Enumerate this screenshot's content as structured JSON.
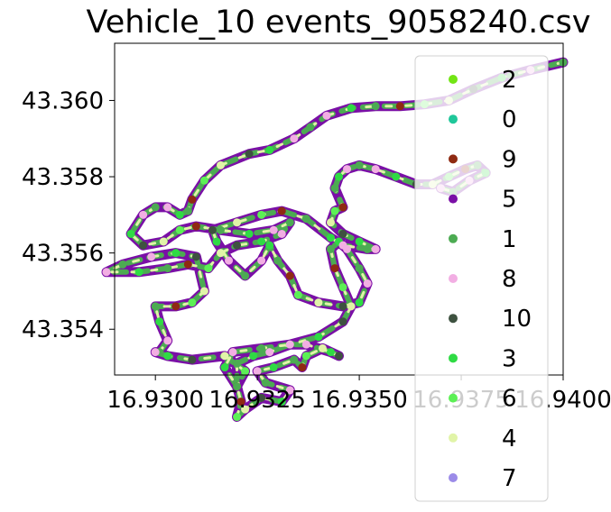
{
  "chart_data": {
    "type": "scatter",
    "title": "Vehicle_10 events_9058240.csv",
    "xlabel": "",
    "ylabel": "",
    "xlim": [
      16.929,
      16.94
    ],
    "ylim": [
      43.3528,
      43.3615
    ],
    "x_ticks": [
      16.93,
      16.9325,
      16.935,
      16.9375,
      16.94
    ],
    "x_tick_labels": [
      "16.9300",
      "16.9325",
      "16.9350",
      "16.9375",
      "16.9400"
    ],
    "y_ticks": [
      43.354,
      43.356,
      43.358,
      43.36
    ],
    "y_tick_labels": [
      "43.354",
      "43.356",
      "43.358",
      "43.360"
    ],
    "grid": false,
    "legend_position": "right",
    "series": [
      {
        "name": "2",
        "color": "#72e514"
      },
      {
        "name": "0",
        "color": "#1fc79a"
      },
      {
        "name": "9",
        "color": "#8f2a12"
      },
      {
        "name": "5",
        "color": "#7a0fa6"
      },
      {
        "name": "1",
        "color": "#4cab52"
      },
      {
        "name": "8",
        "color": "#f2aee3"
      },
      {
        "name": "10",
        "color": "#3e5240"
      },
      {
        "name": "3",
        "color": "#2fdb44"
      },
      {
        "name": "6",
        "color": "#5cf055"
      },
      {
        "name": "4",
        "color": "#e1f4a8"
      },
      {
        "name": "7",
        "color": "#9b8be8"
      }
    ],
    "track": [
      [
        16.94,
        43.361
      ],
      [
        16.9392,
        43.3608
      ],
      [
        16.9385,
        43.3606
      ],
      [
        16.9378,
        43.3603
      ],
      [
        16.9372,
        43.36
      ],
      [
        16.9366,
        43.3599
      ],
      [
        16.936,
        43.35985
      ],
      [
        16.9354,
        43.35985
      ],
      [
        16.9348,
        43.3598
      ],
      [
        16.9342,
        43.3596
      ],
      [
        16.9338,
        43.3593
      ],
      [
        16.9334,
        43.359
      ],
      [
        16.9328,
        43.3587
      ],
      [
        16.9323,
        43.3586
      ],
      [
        16.9316,
        43.3583
      ],
      [
        16.9312,
        43.3579
      ],
      [
        16.9309,
        43.3574
      ],
      [
        16.9308,
        43.3571
      ],
      [
        16.9306,
        43.357
      ],
      [
        16.9303,
        43.3572
      ],
      [
        16.93,
        43.3572
      ],
      [
        16.9297,
        43.357
      ],
      [
        16.9294,
        43.3565
      ],
      [
        16.9297,
        43.3562
      ],
      [
        16.9302,
        43.3563
      ],
      [
        16.9306,
        43.3566
      ],
      [
        16.931,
        43.3567
      ],
      [
        16.9316,
        43.3566
      ],
      [
        16.9323,
        43.3565
      ],
      [
        16.9329,
        43.3566
      ],
      [
        16.9333,
        43.3568
      ],
      [
        16.9331,
        43.3565
      ],
      [
        16.9326,
        43.3563
      ],
      [
        16.932,
        43.3562
      ],
      [
        16.9316,
        43.356
      ],
      [
        16.9313,
        43.3556
      ],
      [
        16.9308,
        43.3557
      ],
      [
        16.9303,
        43.3556
      ],
      [
        16.9296,
        43.3555
      ],
      [
        16.9288,
        43.3555
      ],
      [
        16.9292,
        43.3557
      ],
      [
        16.9299,
        43.3559
      ],
      [
        16.9305,
        43.356
      ],
      [
        16.931,
        43.3559
      ],
      [
        16.9312,
        43.355
      ],
      [
        16.9309,
        43.3547
      ],
      [
        16.9305,
        43.3546
      ],
      [
        16.93,
        43.3546
      ],
      [
        16.9301,
        43.3542
      ],
      [
        16.9303,
        43.3537
      ],
      [
        16.9301,
        43.3534
      ],
      [
        16.93,
        43.3534
      ],
      [
        16.9303,
        43.3533
      ],
      [
        16.9309,
        43.3532
      ],
      [
        16.9317,
        43.3533
      ],
      [
        16.9322,
        43.3529
      ],
      [
        16.932,
        43.3525
      ],
      [
        16.932,
        43.3531
      ],
      [
        16.9324,
        43.3533
      ],
      [
        16.9328,
        43.3534
      ],
      [
        16.9333,
        43.3536
      ],
      [
        16.9337,
        43.3536
      ],
      [
        16.9343,
        43.3534
      ],
      [
        16.9345,
        43.3533
      ],
      [
        16.9341,
        43.3535
      ],
      [
        16.9337,
        43.3533
      ],
      [
        16.9336,
        43.353
      ],
      [
        16.9334,
        43.3532
      ],
      [
        16.9329,
        43.353
      ],
      [
        16.9325,
        43.3529
      ],
      [
        16.9327,
        43.3526
      ],
      [
        16.9333,
        43.3524
      ],
      [
        16.9331,
        43.3521
      ],
      [
        16.9326,
        43.3522
      ],
      [
        16.9322,
        43.3519
      ],
      [
        16.932,
        43.3517
      ],
      [
        16.9321,
        43.3521
      ],
      [
        16.932,
        43.3525
      ],
      [
        16.9317,
        43.353
      ],
      [
        16.9319,
        43.3534
      ],
      [
        16.9326,
        43.3535
      ],
      [
        16.9333,
        43.3536
      ],
      [
        16.934,
        43.3538
      ],
      [
        16.9346,
        43.3542
      ],
      [
        16.9348,
        43.3546
      ],
      [
        16.9346,
        43.3551
      ],
      [
        16.9344,
        43.3556
      ],
      [
        16.9343,
        43.3561
      ],
      [
        16.9345,
        43.3563
      ],
      [
        16.9347,
        43.3561
      ],
      [
        16.935,
        43.3556
      ],
      [
        16.9352,
        43.3552
      ],
      [
        16.935,
        43.3547
      ],
      [
        16.9346,
        43.3546
      ],
      [
        16.934,
        43.3547
      ],
      [
        16.9335,
        43.3549
      ],
      [
        16.9333,
        43.3554
      ],
      [
        16.933,
        43.3558
      ],
      [
        16.9328,
        43.3562
      ],
      [
        16.9326,
        43.3558
      ],
      [
        16.9322,
        43.3554
      ],
      [
        16.9318,
        43.3558
      ],
      [
        16.9315,
        43.3563
      ],
      [
        16.9314,
        43.3566
      ],
      [
        16.932,
        43.3568
      ],
      [
        16.9326,
        43.357
      ],
      [
        16.9331,
        43.3571
      ],
      [
        16.9337,
        43.3569
      ],
      [
        16.9343,
        43.3564
      ],
      [
        16.9346,
        43.3562
      ],
      [
        16.9352,
        43.3561
      ],
      [
        16.9354,
        43.3561
      ],
      [
        16.935,
        43.3563
      ],
      [
        16.9346,
        43.3565
      ],
      [
        16.9343,
        43.3568
      ],
      [
        16.9344,
        43.3571
      ],
      [
        16.9346,
        43.3572
      ],
      [
        16.9344,
        43.3577
      ],
      [
        16.9345,
        43.358
      ],
      [
        16.9347,
        43.3582
      ],
      [
        16.935,
        43.3583
      ],
      [
        16.9354,
        43.3582
      ],
      [
        16.9359,
        43.358
      ],
      [
        16.9364,
        43.3578
      ],
      [
        16.9368,
        43.3578
      ],
      [
        16.9372,
        43.358
      ],
      [
        16.9376,
        43.3582
      ],
      [
        16.9379,
        43.3583
      ],
      [
        16.9381,
        43.3581
      ],
      [
        16.9377,
        43.3579
      ],
      [
        16.9373,
        43.3576
      ],
      [
        16.937,
        43.3577
      ]
    ]
  }
}
